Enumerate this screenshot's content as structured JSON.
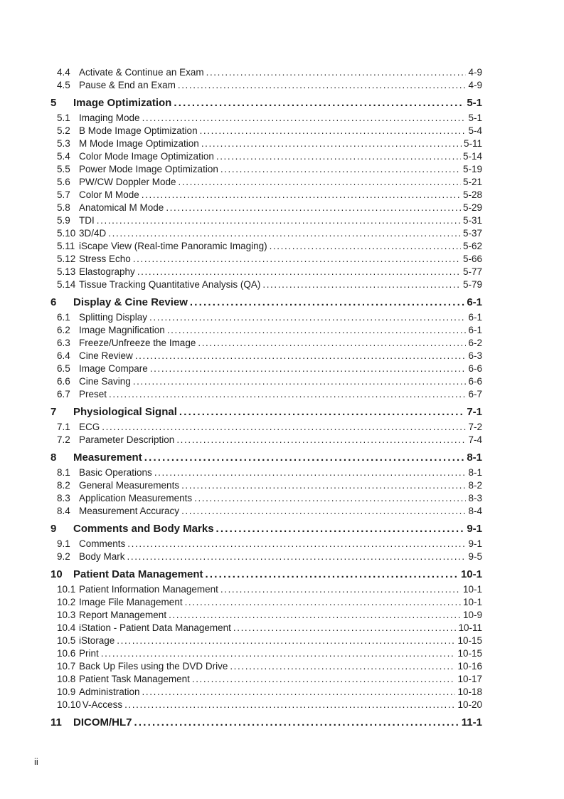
{
  "page": {
    "footer_page_number": "ii"
  },
  "toc": {
    "entries": [
      {
        "level": "sub",
        "num": "4.4",
        "title": "Activate & Continue an Exam",
        "page": "4-9"
      },
      {
        "level": "sub",
        "num": "4.5",
        "title": "Pause & End an Exam",
        "page": "4-9"
      },
      {
        "level": "chapter",
        "num": "5",
        "title": "Image Optimization",
        "page": "5-1"
      },
      {
        "level": "sub",
        "num": "5.1",
        "title": "Imaging Mode",
        "page": "5-1"
      },
      {
        "level": "sub",
        "num": "5.2",
        "title": "B Mode Image Optimization",
        "page": "5-4"
      },
      {
        "level": "sub",
        "num": "5.3",
        "title": "M Mode Image Optimization",
        "page": "5-11"
      },
      {
        "level": "sub",
        "num": "5.4",
        "title": "Color Mode Image Optimization",
        "page": "5-14"
      },
      {
        "level": "sub",
        "num": "5.5",
        "title": "Power Mode Image Optimization",
        "page": "5-19"
      },
      {
        "level": "sub",
        "num": "5.6",
        "title": "PW/CW Doppler Mode",
        "page": "5-21"
      },
      {
        "level": "sub",
        "num": "5.7",
        "title": "Color M Mode",
        "page": "5-28"
      },
      {
        "level": "sub",
        "num": "5.8",
        "title": "Anatomical M Mode",
        "page": "5-29"
      },
      {
        "level": "sub",
        "num": "5.9",
        "title": "TDI",
        "page": "5-31"
      },
      {
        "level": "sub",
        "num": "5.10",
        "title": "3D/4D",
        "page": "5-37"
      },
      {
        "level": "sub",
        "num": "5.11",
        "title": "iScape View (Real-time Panoramic Imaging)",
        "page": "5-62"
      },
      {
        "level": "sub",
        "num": "5.12",
        "title": "Stress Echo",
        "page": "5-66"
      },
      {
        "level": "sub",
        "num": "5.13",
        "title": "Elastography",
        "page": "5-77"
      },
      {
        "level": "sub",
        "num": "5.14",
        "title": "Tissue Tracking Quantitative Analysis (QA)",
        "page": "5-79"
      },
      {
        "level": "chapter",
        "num": "6",
        "title": "Display & Cine Review",
        "page": "6-1"
      },
      {
        "level": "sub",
        "num": "6.1",
        "title": "Splitting Display",
        "page": "6-1"
      },
      {
        "level": "sub",
        "num": "6.2",
        "title": "Image Magnification",
        "page": "6-1"
      },
      {
        "level": "sub",
        "num": "6.3",
        "title": "Freeze/Unfreeze the Image",
        "page": "6-2"
      },
      {
        "level": "sub",
        "num": "6.4",
        "title": "Cine Review",
        "page": "6-3"
      },
      {
        "level": "sub",
        "num": "6.5",
        "title": "Image Compare",
        "page": "6-6"
      },
      {
        "level": "sub",
        "num": "6.6",
        "title": "Cine Saving",
        "page": "6-6"
      },
      {
        "level": "sub",
        "num": "6.7",
        "title": "Preset",
        "page": "6-7"
      },
      {
        "level": "chapter",
        "num": "7",
        "title": "Physiological Signal",
        "page": "7-1"
      },
      {
        "level": "sub",
        "num": "7.1",
        "title": "ECG",
        "page": "7-2"
      },
      {
        "level": "sub",
        "num": "7.2",
        "title": "Parameter Description",
        "page": "7-4"
      },
      {
        "level": "chapter",
        "num": "8",
        "title": "Measurement",
        "page": "8-1"
      },
      {
        "level": "sub",
        "num": "8.1",
        "title": "Basic Operations",
        "page": "8-1"
      },
      {
        "level": "sub",
        "num": "8.2",
        "title": "General Measurements",
        "page": "8-2"
      },
      {
        "level": "sub",
        "num": "8.3",
        "title": "Application Measurements",
        "page": "8-3"
      },
      {
        "level": "sub",
        "num": "8.4",
        "title": "Measurement Accuracy",
        "page": "8-4"
      },
      {
        "level": "chapter",
        "num": "9",
        "title": "Comments and Body Marks",
        "page": "9-1"
      },
      {
        "level": "sub",
        "num": "9.1",
        "title": "Comments",
        "page": "9-1"
      },
      {
        "level": "sub",
        "num": "9.2",
        "title": "Body Mark",
        "page": "9-5"
      },
      {
        "level": "chapter",
        "num": "10",
        "title": "Patient Data Management",
        "page": "10-1"
      },
      {
        "level": "sub",
        "num": "10.1",
        "title": "Patient Information Management",
        "page": "10-1"
      },
      {
        "level": "sub",
        "num": "10.2",
        "title": "Image File Management",
        "page": "10-1"
      },
      {
        "level": "sub",
        "num": "10.3",
        "title": "Report Management",
        "page": "10-9"
      },
      {
        "level": "sub",
        "num": "10.4",
        "title": "iStation - Patient Data Management",
        "page": "10-11"
      },
      {
        "level": "sub",
        "num": "10.5",
        "title": "iStorage",
        "page": "10-15"
      },
      {
        "level": "sub",
        "num": "10.6",
        "title": "Print",
        "page": "10-15"
      },
      {
        "level": "sub",
        "num": "10.7",
        "title": "Back Up Files using the DVD Drive",
        "page": "10-16"
      },
      {
        "level": "sub",
        "num": "10.8",
        "title": "Patient Task Management",
        "page": "10-17"
      },
      {
        "level": "sub",
        "num": "10.9",
        "title": "Administration",
        "page": "10-18"
      },
      {
        "level": "sub",
        "num": "10.10",
        "title": "V-Access",
        "page": "10-20"
      },
      {
        "level": "chapter",
        "num": "11",
        "title": "DICOM/HL7",
        "page": "11-1"
      }
    ]
  }
}
